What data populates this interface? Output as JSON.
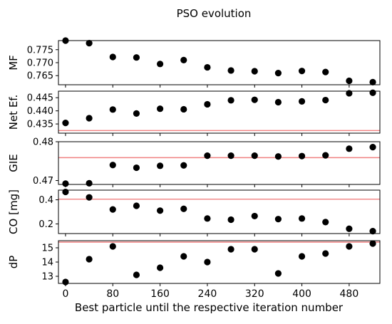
{
  "chart_data": {
    "type": "scatter",
    "title": "PSO evolution",
    "xlabel": "Best  particle until the respective iteration number",
    "xticks": [
      0,
      80,
      160,
      240,
      320,
      400,
      480
    ],
    "xlim": [
      -12,
      532
    ],
    "x": [
      0,
      40,
      80,
      120,
      160,
      200,
      240,
      280,
      320,
      360,
      400,
      440,
      480,
      520
    ],
    "marker_color": "#000000",
    "reference_line_color": "#f08080",
    "panels": [
      {
        "ylabel": "MF",
        "ylim": [
          0.7615,
          0.7785
        ],
        "yticks": [
          0.765,
          0.77,
          0.775
        ],
        "ytick_labels": [
          "0.765",
          "0.770",
          "0.775"
        ],
        "values": [
          0.7785,
          0.7775,
          0.7722,
          0.772,
          0.7695,
          0.771,
          0.7682,
          0.767,
          0.7667,
          0.766,
          0.7668,
          0.7664,
          0.763,
          0.7625
        ],
        "reference": null
      },
      {
        "ylabel": "Net Ef.",
        "ylim": [
          0.4315,
          0.4475
        ],
        "yticks": [
          0.435,
          0.44,
          0.445
        ],
        "ytick_labels": [
          "0.435",
          "0.440",
          "0.445"
        ],
        "values": [
          0.4354,
          0.4372,
          0.4405,
          0.439,
          0.4408,
          0.4406,
          0.4425,
          0.444,
          0.4442,
          0.4433,
          0.4436,
          0.4441,
          0.4467,
          0.4469
        ],
        "reference": 0.4325
      },
      {
        "ylabel": "GIE",
        "ylim": [
          0.469,
          0.48
        ],
        "yticks": [
          0.47,
          0.48
        ],
        "ytick_labels": [
          "0.47",
          "0.48"
        ],
        "values": [
          0.4692,
          0.4693,
          0.474,
          0.4733,
          0.4738,
          0.4739,
          0.4764,
          0.4764,
          0.4764,
          0.4762,
          0.4763,
          0.4765,
          0.4782,
          0.4786
        ],
        "reference": 0.4759
      },
      {
        "ylabel": "CO [mg]",
        "ylim": [
          0.12,
          0.48
        ],
        "yticks": [
          0.2,
          0.4
        ],
        "ytick_labels": [
          "0.2",
          "0.4"
        ],
        "values": [
          0.465,
          0.42,
          0.32,
          0.35,
          0.31,
          0.325,
          0.245,
          0.235,
          0.265,
          0.24,
          0.245,
          0.215,
          0.16,
          0.14
        ],
        "reference": 0.405
      },
      {
        "ylabel": "dP",
        "ylim": [
          12.5,
          15.5
        ],
        "yticks": [
          13,
          14,
          15
        ],
        "ytick_labels": [
          "13",
          "14",
          "15"
        ],
        "values": [
          12.6,
          14.2,
          15.1,
          13.1,
          13.6,
          14.4,
          14.0,
          14.9,
          14.9,
          13.2,
          14.4,
          14.6,
          15.1,
          15.3
        ],
        "reference": 15.4
      }
    ]
  }
}
